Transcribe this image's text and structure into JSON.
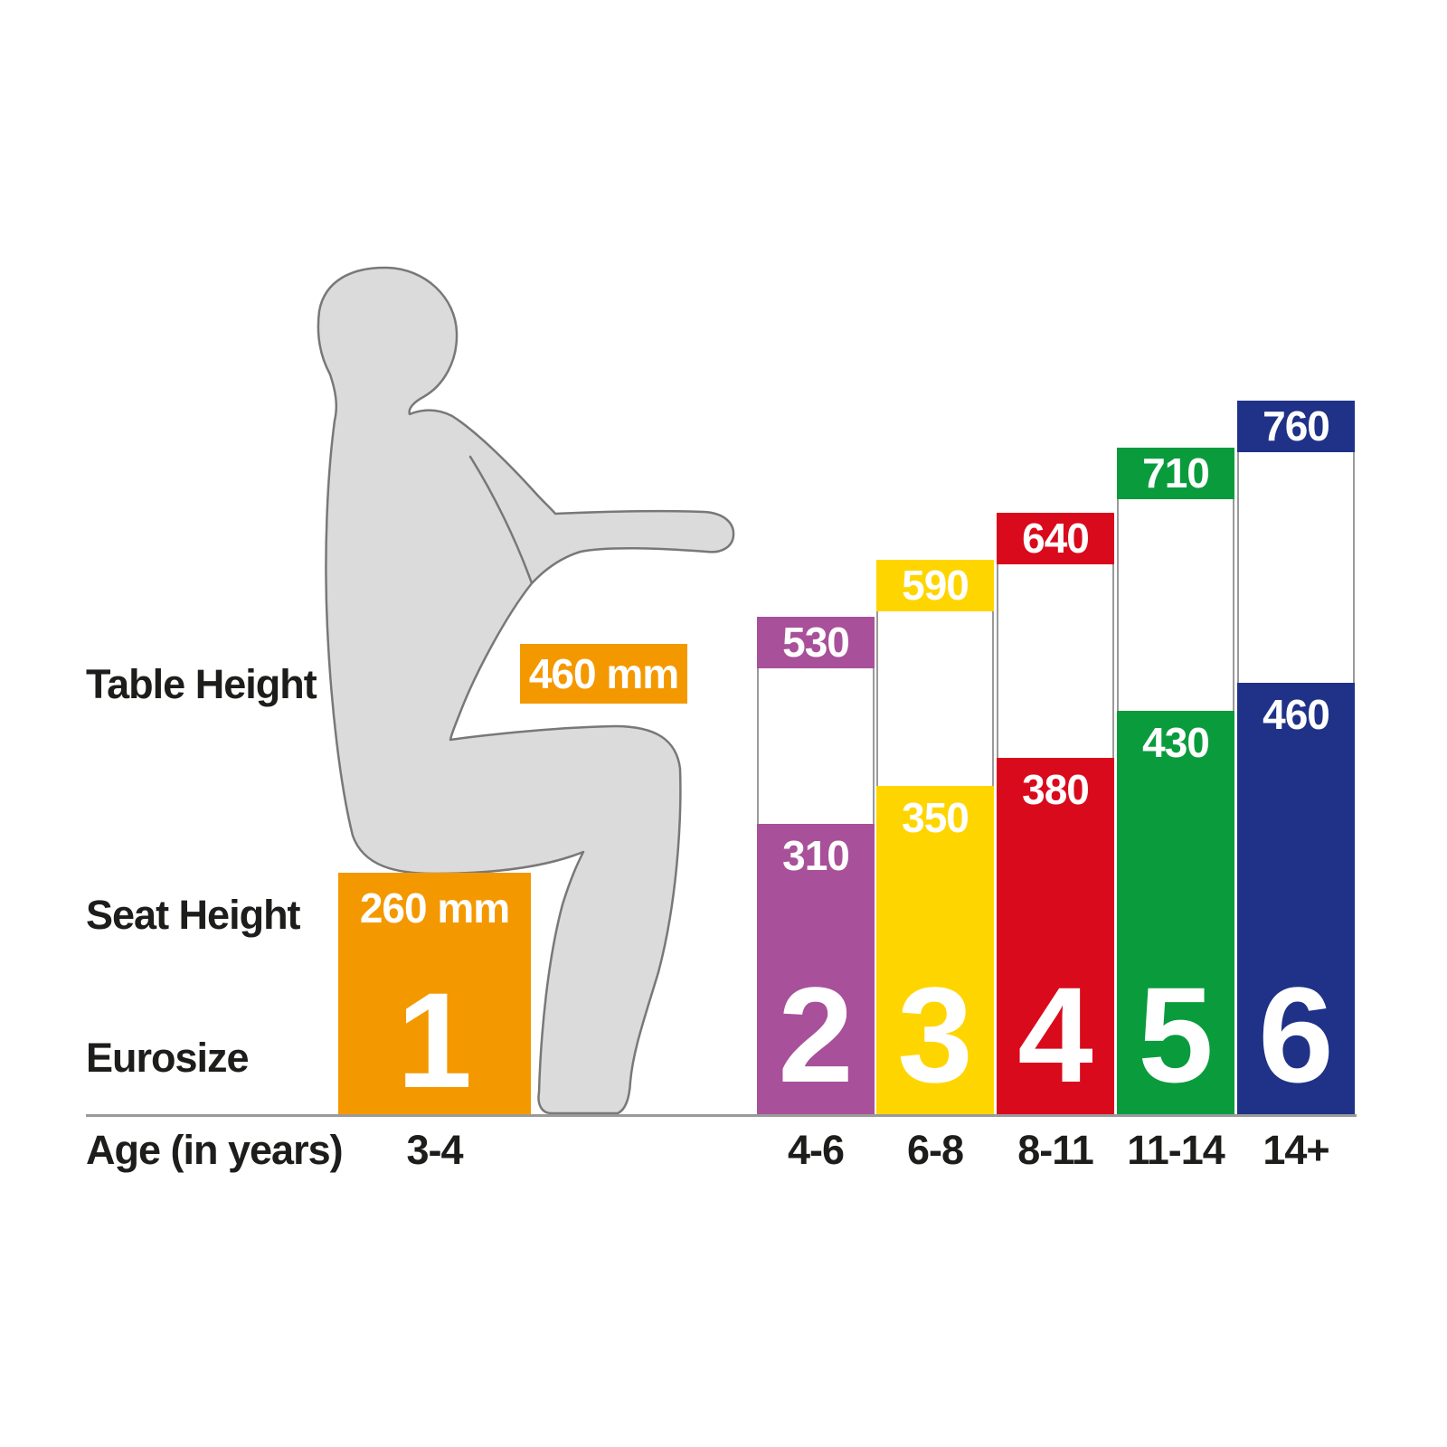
{
  "labels": {
    "table_height": "Table Height",
    "seat_height": "Seat Height",
    "eurosize": "Eurosize",
    "age": "Age (in years)"
  },
  "chart_data": {
    "type": "bar",
    "unit": "mm",
    "categories": [
      "3-4",
      "4-6",
      "6-8",
      "8-11",
      "11-14",
      "14+"
    ],
    "eurosizes": [
      "1",
      "2",
      "3",
      "4",
      "5",
      "6"
    ],
    "series": [
      {
        "name": "Table Height",
        "values": [
          460,
          530,
          590,
          640,
          710,
          760
        ]
      },
      {
        "name": "Seat Height",
        "values": [
          260,
          310,
          350,
          380,
          430,
          460
        ]
      }
    ],
    "value_labels_visible": true,
    "legend_position": "none",
    "grid": false
  },
  "columns": [
    {
      "eurosize": "1",
      "age": "3-4",
      "table_mm": 460,
      "seat_mm": 260,
      "table_label": "460 mm",
      "seat_label": "260 mm",
      "color": "#F49800"
    },
    {
      "eurosize": "2",
      "age": "4-6",
      "table_mm": 530,
      "seat_mm": 310,
      "table_label": "530",
      "seat_label": "310",
      "color": "#A8509A"
    },
    {
      "eurosize": "3",
      "age": "6-8",
      "table_mm": 590,
      "seat_mm": 350,
      "table_label": "590",
      "seat_label": "350",
      "color": "#FFD500"
    },
    {
      "eurosize": "4",
      "age": "8-11",
      "table_mm": 640,
      "seat_mm": 380,
      "table_label": "640",
      "seat_label": "380",
      "color": "#D90A1C"
    },
    {
      "eurosize": "5",
      "age": "11-14",
      "table_mm": 710,
      "seat_mm": 430,
      "table_label": "710",
      "seat_label": "430",
      "color": "#0A9B3D"
    },
    {
      "eurosize": "6",
      "age": "14+",
      "table_mm": 760,
      "seat_mm": 460,
      "table_label": "760",
      "seat_label": "460",
      "color": "#1F3287"
    }
  ],
  "accent_colors": {
    "baseline": "#9a9a9a",
    "column_outline": "#9a9a9a",
    "silhouette_fill": "#dbdbdb",
    "silhouette_stroke": "#787878",
    "text": "#1d1d1b"
  }
}
